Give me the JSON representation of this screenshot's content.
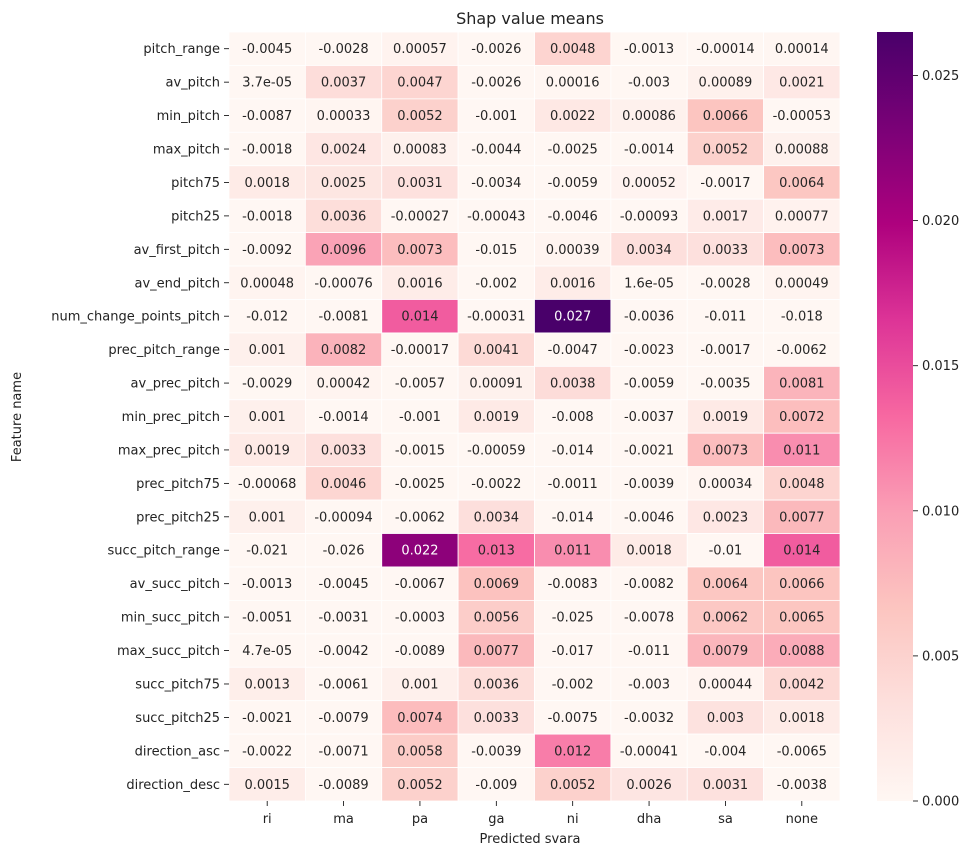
{
  "chart_data": {
    "type": "heatmap",
    "title": "Shap value means",
    "xlabel": "Predicted svara",
    "ylabel": "Feature name",
    "columns": [
      "ri",
      "ma",
      "pa",
      "ga",
      "ni",
      "dha",
      "sa",
      "none"
    ],
    "rows": [
      "pitch_range",
      "av_pitch",
      "min_pitch",
      "max_pitch",
      "pitch75",
      "pitch25",
      "av_first_pitch",
      "av_end_pitch",
      "num_change_points_pitch",
      "prec_pitch_range",
      "av_prec_pitch",
      "min_prec_pitch",
      "max_prec_pitch",
      "prec_pitch75",
      "prec_pitch25",
      "succ_pitch_range",
      "av_succ_pitch",
      "min_succ_pitch",
      "max_succ_pitch",
      "succ_pitch75",
      "succ_pitch25",
      "direction_asc",
      "direction_desc"
    ],
    "cell_labels": [
      [
        "-0.0045",
        "-0.0028",
        "0.00057",
        "-0.0026",
        "0.0048",
        "-0.0013",
        "-0.00014",
        "0.00014"
      ],
      [
        "3.7e-05",
        "0.0037",
        "0.0047",
        "-0.0026",
        "0.00016",
        "-0.003",
        "0.00089",
        "0.0021"
      ],
      [
        "-0.0087",
        "0.00033",
        "0.0052",
        "-0.001",
        "0.0022",
        "0.00086",
        "0.0066",
        "-0.00053"
      ],
      [
        "-0.0018",
        "0.0024",
        "0.00083",
        "-0.0044",
        "-0.0025",
        "-0.0014",
        "0.0052",
        "0.00088"
      ],
      [
        "0.0018",
        "0.0025",
        "0.0031",
        "-0.0034",
        "-0.0059",
        "0.00052",
        "-0.0017",
        "0.0064"
      ],
      [
        "-0.0018",
        "0.0036",
        "-0.00027",
        "-0.00043",
        "-0.0046",
        "-0.00093",
        "0.0017",
        "0.00077"
      ],
      [
        "-0.0092",
        "0.0096",
        "0.0073",
        "-0.015",
        "0.00039",
        "0.0034",
        "0.0033",
        "0.0073"
      ],
      [
        "0.00048",
        "-0.00076",
        "0.0016",
        "-0.002",
        "0.0016",
        "1.6e-05",
        "-0.0028",
        "0.00049"
      ],
      [
        "-0.012",
        "-0.0081",
        "0.014",
        "-0.00031",
        "0.027",
        "-0.0036",
        "-0.011",
        "-0.018"
      ],
      [
        "0.001",
        "0.0082",
        "-0.00017",
        "0.0041",
        "-0.0047",
        "-0.0023",
        "-0.0017",
        "-0.0062"
      ],
      [
        "-0.0029",
        "0.00042",
        "-0.0057",
        "0.00091",
        "0.0038",
        "-0.0059",
        "-0.0035",
        "0.0081"
      ],
      [
        "0.001",
        "-0.0014",
        "-0.001",
        "0.0019",
        "-0.008",
        "-0.0037",
        "0.0019",
        "0.0072"
      ],
      [
        "0.0019",
        "0.0033",
        "-0.0015",
        "-0.00059",
        "-0.014",
        "-0.0021",
        "0.0073",
        "0.011"
      ],
      [
        "-0.00068",
        "0.0046",
        "-0.0025",
        "-0.0022",
        "-0.0011",
        "-0.0039",
        "0.00034",
        "0.0048"
      ],
      [
        "0.001",
        "-0.00094",
        "-0.0062",
        "0.0034",
        "-0.014",
        "-0.0046",
        "0.0023",
        "0.0077"
      ],
      [
        "-0.021",
        "-0.026",
        "0.022",
        "0.013",
        "0.011",
        "0.0018",
        "-0.01",
        "0.014"
      ],
      [
        "-0.0013",
        "-0.0045",
        "-0.0067",
        "0.0069",
        "-0.0083",
        "-0.0082",
        "0.0064",
        "0.0066"
      ],
      [
        "-0.0051",
        "-0.0031",
        "-0.0003",
        "0.0056",
        "-0.025",
        "-0.0078",
        "0.0062",
        "0.0065"
      ],
      [
        "4.7e-05",
        "-0.0042",
        "-0.0089",
        "0.0077",
        "-0.017",
        "-0.011",
        "0.0079",
        "0.0088"
      ],
      [
        "0.0013",
        "-0.0061",
        "0.001",
        "0.0036",
        "-0.002",
        "-0.003",
        "0.00044",
        "0.0042"
      ],
      [
        "-0.0021",
        "-0.0079",
        "0.0074",
        "0.0033",
        "-0.0075",
        "-0.0032",
        "0.003",
        "0.0018"
      ],
      [
        "-0.0022",
        "-0.0071",
        "0.0058",
        "-0.0039",
        "0.012",
        "-0.00041",
        "-0.004",
        "-0.0065"
      ],
      [
        "0.0015",
        "-0.0089",
        "0.0052",
        "-0.009",
        "0.0052",
        "0.0026",
        "0.0031",
        "-0.0038"
      ]
    ],
    "colorbar": {
      "range": [
        0,
        0.0265
      ],
      "ticks": [
        "0.000",
        "0.005",
        "0.010",
        "0.015",
        "0.020",
        "0.025"
      ],
      "tick_values": [
        0,
        0.005,
        0.01,
        0.015,
        0.02,
        0.025
      ]
    },
    "colormap": [
      "#fff7f3",
      "#fde0dd",
      "#fcc5c0",
      "#fa9fb5",
      "#f768a1",
      "#dd3497",
      "#ae017e",
      "#7a0177",
      "#49006a"
    ],
    "grid": false,
    "legend": "right colorbar"
  }
}
